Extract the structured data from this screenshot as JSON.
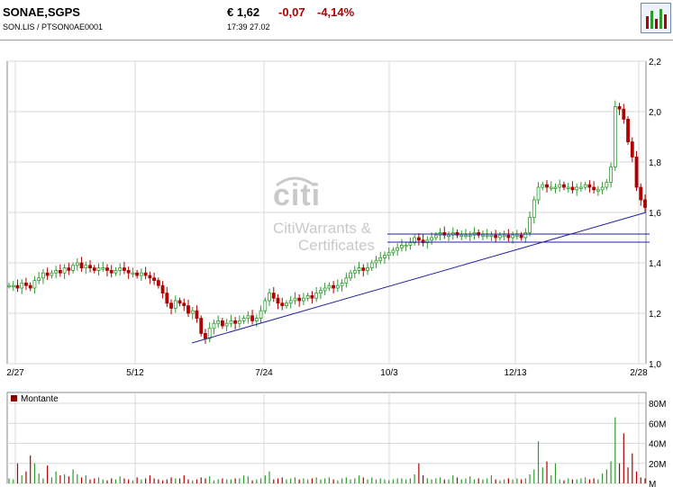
{
  "header": {
    "name": "SONAE,SGPS",
    "ticker_line": "SON.LIS   /   PTSON0AE0001",
    "price": "€ 1,62",
    "change": "-0,07",
    "change_pct": "-4,14%",
    "time": "17:39   27.02",
    "chart_icon": "bar-chart-icon"
  },
  "watermark": {
    "logo": "citi",
    "line1": "CitiWarrants &",
    "line2": "Certificates"
  },
  "colors": {
    "up": "#2e9a2e",
    "down": "#b00000",
    "trend": "#2020a0",
    "grid": "#d8d8d8",
    "volume_legend": "#8b0000"
  },
  "chart_data": [
    {
      "type": "candlestick",
      "title": "",
      "x_tick_labels": [
        "2/27",
        "5/12",
        "7/24",
        "10/3",
        "12/13",
        "2/28"
      ],
      "y_tick_labels": [
        "1,0",
        "1,2",
        "1,4",
        "1,6",
        "1,8",
        "2,0",
        "2,2"
      ],
      "ylim": [
        1.0,
        2.2
      ],
      "grid": true,
      "series": [
        {
          "points": [
            1.31,
            1.31,
            1.3,
            1.32,
            1.31,
            1.3,
            1.33,
            1.34,
            1.36,
            1.35,
            1.36,
            1.37,
            1.36,
            1.38,
            1.37,
            1.39,
            1.4,
            1.38,
            1.39,
            1.38,
            1.37,
            1.38,
            1.38,
            1.37,
            1.36,
            1.37,
            1.38,
            1.37,
            1.36,
            1.36,
            1.35,
            1.36,
            1.35,
            1.34,
            1.33,
            1.31,
            1.28,
            1.24,
            1.22,
            1.25,
            1.24,
            1.23,
            1.2,
            1.21,
            1.18,
            1.12,
            1.1,
            1.14,
            1.16,
            1.17,
            1.15,
            1.16,
            1.17,
            1.16,
            1.17,
            1.18,
            1.19,
            1.17,
            1.18,
            1.21,
            1.25,
            1.28,
            1.26,
            1.24,
            1.23,
            1.24,
            1.25,
            1.26,
            1.25,
            1.26,
            1.27,
            1.26,
            1.28,
            1.29,
            1.3,
            1.31,
            1.3,
            1.31,
            1.32,
            1.34,
            1.36,
            1.37,
            1.38,
            1.37,
            1.38,
            1.4,
            1.41,
            1.42,
            1.43,
            1.44,
            1.45,
            1.46,
            1.47,
            1.47,
            1.48,
            1.5,
            1.49,
            1.48,
            1.49,
            1.5,
            1.51,
            1.52,
            1.51,
            1.51,
            1.52,
            1.51,
            1.51,
            1.51,
            1.51,
            1.52,
            1.51,
            1.51,
            1.51,
            1.51,
            1.5,
            1.51,
            1.51,
            1.5,
            1.51,
            1.51,
            1.5,
            1.52,
            1.58,
            1.65,
            1.7,
            1.71,
            1.7,
            1.7,
            1.7,
            1.71,
            1.7,
            1.7,
            1.69,
            1.7,
            1.7,
            1.71,
            1.7,
            1.69,
            1.69,
            1.7,
            1.72,
            1.78,
            2.02,
            2.01,
            1.97,
            1.88,
            1.82,
            1.7,
            1.65,
            1.62
          ]
        }
      ],
      "trendline_label": ""
    },
    {
      "type": "bar",
      "title": "",
      "legend": [
        "Montante"
      ],
      "y_tick_labels": [
        "M",
        "20M",
        "40M",
        "60M",
        "80M"
      ],
      "ylim": [
        0,
        80
      ],
      "grid": true,
      "series": [
        {
          "name": "Montante",
          "values": [
            5,
            4,
            20,
            8,
            12,
            28,
            20,
            10,
            5,
            18,
            6,
            12,
            8,
            9,
            7,
            14,
            9,
            6,
            8,
            4,
            5,
            6,
            4,
            3,
            5,
            4,
            7,
            5,
            4,
            3,
            6,
            4,
            5,
            8,
            5,
            4,
            3,
            4,
            6,
            5,
            5,
            8,
            4,
            3,
            4,
            6,
            5,
            7,
            3,
            4,
            5,
            4,
            4,
            5,
            5,
            8,
            7,
            3,
            4,
            5,
            8,
            12,
            4,
            5,
            6,
            4,
            5,
            6,
            4,
            5,
            4,
            5,
            6,
            4,
            5,
            6,
            4,
            3,
            5,
            6,
            4,
            5,
            8,
            6,
            4,
            6,
            4,
            5,
            4,
            3,
            4,
            5,
            5,
            4,
            5,
            9,
            20,
            8,
            5,
            4,
            5,
            6,
            4,
            4,
            8,
            6,
            4,
            5,
            7,
            4,
            5,
            4,
            5,
            8,
            4,
            3,
            4,
            5,
            4,
            5,
            4,
            5,
            9,
            14,
            42,
            16,
            22,
            8,
            20,
            4,
            3,
            5,
            4,
            4,
            5,
            6,
            4,
            5,
            4,
            10,
            14,
            22,
            66,
            20,
            50,
            16,
            30,
            12,
            6,
            5
          ]
        }
      ]
    }
  ]
}
